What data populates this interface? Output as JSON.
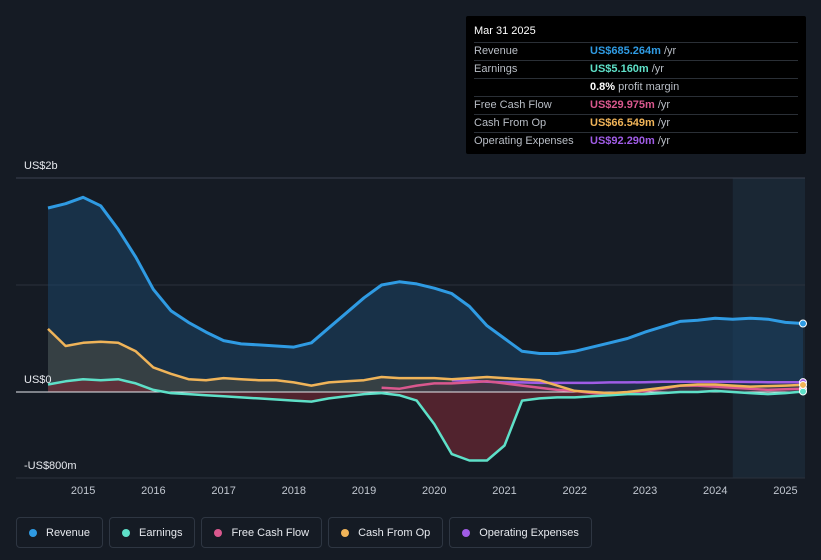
{
  "tooltip": {
    "date": "Mar 31 2025",
    "rows": [
      {
        "label": "Revenue",
        "value": "US$685.264m",
        "unit": "/yr",
        "color": "#2f9be3"
      },
      {
        "label": "Earnings",
        "value": "US$5.160m",
        "unit": "/yr",
        "color": "#5ee0c8"
      },
      {
        "label": "",
        "value": "0.8%",
        "unit": "profit margin",
        "color": "#ffffff"
      },
      {
        "label": "Free Cash Flow",
        "value": "US$29.975m",
        "unit": "/yr",
        "color": "#d9588e"
      },
      {
        "label": "Cash From Op",
        "value": "US$66.549m",
        "unit": "/yr",
        "color": "#f0b459"
      },
      {
        "label": "Operating Expenses",
        "value": "US$92.290m",
        "unit": "/yr",
        "color": "#a05ce6"
      }
    ]
  },
  "chart_data": {
    "type": "area",
    "title": "",
    "xlabel": "",
    "ylabel": "",
    "y_axis_labels": {
      "top": "US$2b",
      "zero": "US$0",
      "bottom": "-US$800m"
    },
    "ylim": [
      -800,
      2000
    ],
    "xlim": [
      2014.3,
      2025.25
    ],
    "x_ticks": [
      "2015",
      "2016",
      "2017",
      "2018",
      "2019",
      "2020",
      "2021",
      "2022",
      "2023",
      "2024",
      "2025"
    ],
    "forecast_start": 2024.25,
    "series": [
      {
        "name": "Revenue",
        "color": "#2f9be3",
        "points": [
          [
            2014.5,
            1720
          ],
          [
            2014.75,
            1760
          ],
          [
            2015.0,
            1820
          ],
          [
            2015.25,
            1740
          ],
          [
            2015.5,
            1520
          ],
          [
            2015.75,
            1260
          ],
          [
            2016.0,
            960
          ],
          [
            2016.25,
            760
          ],
          [
            2016.5,
            650
          ],
          [
            2016.75,
            560
          ],
          [
            2017.0,
            480
          ],
          [
            2017.25,
            450
          ],
          [
            2017.5,
            440
          ],
          [
            2017.75,
            430
          ],
          [
            2018.0,
            420
          ],
          [
            2018.25,
            460
          ],
          [
            2018.5,
            600
          ],
          [
            2018.75,
            740
          ],
          [
            2019.0,
            880
          ],
          [
            2019.25,
            1000
          ],
          [
            2019.5,
            1030
          ],
          [
            2019.75,
            1010
          ],
          [
            2020.0,
            970
          ],
          [
            2020.25,
            920
          ],
          [
            2020.5,
            800
          ],
          [
            2020.75,
            620
          ],
          [
            2021.0,
            500
          ],
          [
            2021.25,
            380
          ],
          [
            2021.5,
            360
          ],
          [
            2021.75,
            360
          ],
          [
            2022.0,
            380
          ],
          [
            2022.25,
            420
          ],
          [
            2022.5,
            460
          ],
          [
            2022.75,
            500
          ],
          [
            2023.0,
            560
          ],
          [
            2023.25,
            610
          ],
          [
            2023.5,
            660
          ],
          [
            2023.75,
            670
          ],
          [
            2024.0,
            690
          ],
          [
            2024.25,
            680
          ],
          [
            2024.5,
            690
          ],
          [
            2024.75,
            680
          ],
          [
            2025.0,
            650
          ],
          [
            2025.25,
            640
          ]
        ]
      },
      {
        "name": "Earnings",
        "color": "#5ee0c8",
        "points": [
          [
            2014.5,
            70
          ],
          [
            2014.75,
            100
          ],
          [
            2015.0,
            120
          ],
          [
            2015.25,
            110
          ],
          [
            2015.5,
            120
          ],
          [
            2015.75,
            80
          ],
          [
            2016.0,
            20
          ],
          [
            2016.25,
            -10
          ],
          [
            2016.5,
            -20
          ],
          [
            2016.75,
            -30
          ],
          [
            2017.0,
            -40
          ],
          [
            2017.25,
            -50
          ],
          [
            2017.5,
            -60
          ],
          [
            2017.75,
            -70
          ],
          [
            2018.0,
            -80
          ],
          [
            2018.25,
            -90
          ],
          [
            2018.5,
            -60
          ],
          [
            2018.75,
            -40
          ],
          [
            2019.0,
            -20
          ],
          [
            2019.25,
            -10
          ],
          [
            2019.5,
            -30
          ],
          [
            2019.75,
            -80
          ],
          [
            2020.0,
            -300
          ],
          [
            2020.25,
            -580
          ],
          [
            2020.5,
            -640
          ],
          [
            2020.75,
            -640
          ],
          [
            2021.0,
            -500
          ],
          [
            2021.25,
            -80
          ],
          [
            2021.5,
            -60
          ],
          [
            2021.75,
            -50
          ],
          [
            2022.0,
            -50
          ],
          [
            2022.25,
            -40
          ],
          [
            2022.5,
            -30
          ],
          [
            2022.75,
            -20
          ],
          [
            2023.0,
            -20
          ],
          [
            2023.25,
            -10
          ],
          [
            2023.5,
            0
          ],
          [
            2023.75,
            0
          ],
          [
            2024.0,
            10
          ],
          [
            2024.25,
            0
          ],
          [
            2024.5,
            -10
          ],
          [
            2024.75,
            -20
          ],
          [
            2025.0,
            -10
          ],
          [
            2025.25,
            5
          ]
        ]
      },
      {
        "name": "Free Cash Flow",
        "color": "#d9588e",
        "points": [
          [
            2019.25,
            40
          ],
          [
            2019.5,
            30
          ],
          [
            2019.75,
            60
          ],
          [
            2020.0,
            80
          ],
          [
            2020.25,
            80
          ],
          [
            2020.5,
            90
          ],
          [
            2020.75,
            100
          ],
          [
            2021.0,
            80
          ],
          [
            2021.25,
            60
          ],
          [
            2021.5,
            40
          ],
          [
            2021.75,
            20
          ],
          [
            2022.0,
            10
          ],
          [
            2022.25,
            -10
          ],
          [
            2022.5,
            -20
          ],
          [
            2022.75,
            -10
          ],
          [
            2023.0,
            10
          ],
          [
            2023.25,
            30
          ],
          [
            2023.5,
            60
          ],
          [
            2023.75,
            60
          ],
          [
            2024.0,
            50
          ],
          [
            2024.25,
            40
          ],
          [
            2024.5,
            30
          ],
          [
            2024.75,
            20
          ],
          [
            2025.0,
            25
          ],
          [
            2025.25,
            30
          ]
        ]
      },
      {
        "name": "Cash From Op",
        "color": "#f0b459",
        "points": [
          [
            2014.5,
            590
          ],
          [
            2014.75,
            430
          ],
          [
            2015.0,
            460
          ],
          [
            2015.25,
            470
          ],
          [
            2015.5,
            460
          ],
          [
            2015.75,
            380
          ],
          [
            2016.0,
            230
          ],
          [
            2016.25,
            170
          ],
          [
            2016.5,
            120
          ],
          [
            2016.75,
            110
          ],
          [
            2017.0,
            130
          ],
          [
            2017.25,
            120
          ],
          [
            2017.5,
            110
          ],
          [
            2017.75,
            110
          ],
          [
            2018.0,
            90
          ],
          [
            2018.25,
            60
          ],
          [
            2018.5,
            90
          ],
          [
            2018.75,
            100
          ],
          [
            2019.0,
            110
          ],
          [
            2019.25,
            140
          ],
          [
            2019.5,
            130
          ],
          [
            2019.75,
            130
          ],
          [
            2020.0,
            130
          ],
          [
            2020.25,
            120
          ],
          [
            2020.5,
            130
          ],
          [
            2020.75,
            140
          ],
          [
            2021.0,
            130
          ],
          [
            2021.25,
            120
          ],
          [
            2021.5,
            110
          ],
          [
            2021.75,
            60
          ],
          [
            2022.0,
            10
          ],
          [
            2022.25,
            0
          ],
          [
            2022.5,
            -10
          ],
          [
            2022.75,
            0
          ],
          [
            2023.0,
            20
          ],
          [
            2023.25,
            40
          ],
          [
            2023.5,
            60
          ],
          [
            2023.75,
            70
          ],
          [
            2024.0,
            70
          ],
          [
            2024.25,
            60
          ],
          [
            2024.5,
            50
          ],
          [
            2024.75,
            55
          ],
          [
            2025.0,
            60
          ],
          [
            2025.25,
            66
          ]
        ]
      },
      {
        "name": "Operating Expenses",
        "color": "#a05ce6",
        "points": [
          [
            2020.25,
            110
          ],
          [
            2020.5,
            105
          ],
          [
            2020.75,
            95
          ],
          [
            2021.0,
            90
          ],
          [
            2021.25,
            90
          ],
          [
            2021.5,
            85
          ],
          [
            2021.75,
            85
          ],
          [
            2022.0,
            85
          ],
          [
            2022.25,
            85
          ],
          [
            2022.5,
            90
          ],
          [
            2022.75,
            90
          ],
          [
            2023.0,
            92
          ],
          [
            2023.25,
            95
          ],
          [
            2023.5,
            95
          ],
          [
            2023.75,
            95
          ],
          [
            2024.0,
            95
          ],
          [
            2024.25,
            95
          ],
          [
            2024.5,
            93
          ],
          [
            2024.75,
            92
          ],
          [
            2025.0,
            92
          ],
          [
            2025.25,
            92
          ]
        ]
      }
    ]
  },
  "legend": [
    {
      "label": "Revenue",
      "color": "#2f9be3"
    },
    {
      "label": "Earnings",
      "color": "#5ee0c8"
    },
    {
      "label": "Free Cash Flow",
      "color": "#d9588e"
    },
    {
      "label": "Cash From Op",
      "color": "#f0b459"
    },
    {
      "label": "Operating Expenses",
      "color": "#a05ce6"
    }
  ]
}
